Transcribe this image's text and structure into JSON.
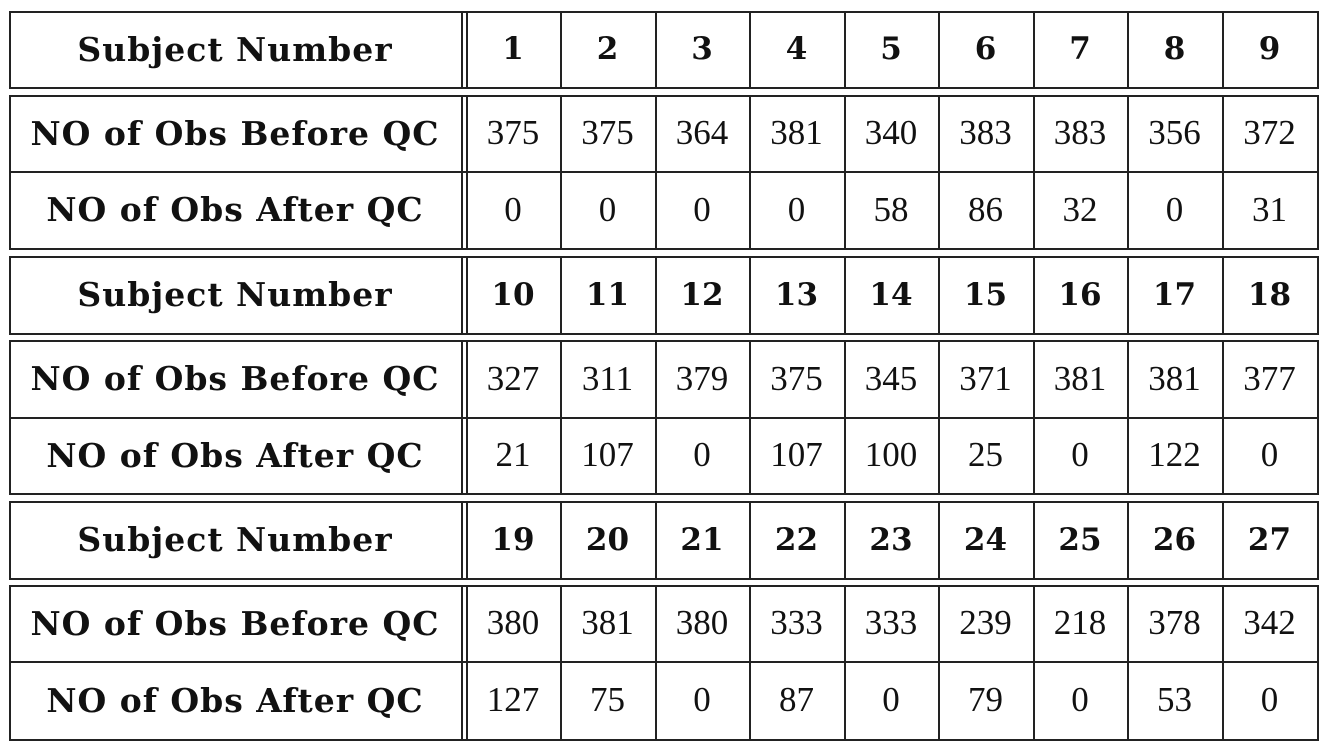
{
  "blocks": [
    {
      "header": {
        "label": "Subject Number",
        "subjects": [
          "1",
          "2",
          "3",
          "4",
          "5",
          "6",
          "7",
          "8",
          "9"
        ]
      },
      "rows": [
        {
          "label": "NO of Obs Before QC",
          "values": [
            "375",
            "375",
            "364",
            "381",
            "340",
            "383",
            "383",
            "356",
            "372"
          ]
        },
        {
          "label": "NO of Obs After QC",
          "values": [
            "0",
            "0",
            "0",
            "0",
            "58",
            "86",
            "32",
            "0",
            "31"
          ]
        }
      ]
    },
    {
      "header": {
        "label": "Subject Number",
        "subjects": [
          "10",
          "11",
          "12",
          "13",
          "14",
          "15",
          "16",
          "17",
          "18"
        ]
      },
      "rows": [
        {
          "label": "NO of Obs Before QC",
          "values": [
            "327",
            "311",
            "379",
            "375",
            "345",
            "371",
            "381",
            "381",
            "377"
          ]
        },
        {
          "label": "NO of Obs After QC",
          "values": [
            "21",
            "107",
            "0",
            "107",
            "100",
            "25",
            "0",
            "122",
            "0"
          ]
        }
      ]
    },
    {
      "header": {
        "label": "Subject Number",
        "subjects": [
          "19",
          "20",
          "21",
          "22",
          "23",
          "24",
          "25",
          "26",
          "27"
        ]
      },
      "rows": [
        {
          "label": "NO of Obs Before QC",
          "values": [
            "380",
            "381",
            "380",
            "333",
            "333",
            "239",
            "218",
            "378",
            "342"
          ]
        },
        {
          "label": "NO of Obs After QC",
          "values": [
            "127",
            "75",
            "0",
            "87",
            "0",
            "79",
            "0",
            "53",
            "0"
          ]
        }
      ]
    }
  ]
}
